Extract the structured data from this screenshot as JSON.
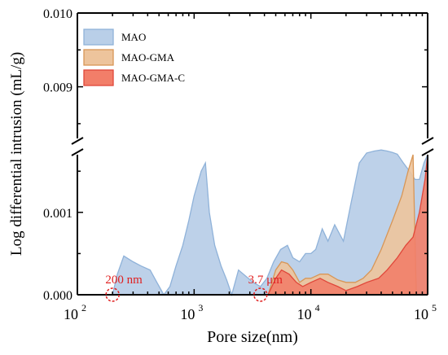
{
  "chart_data": {
    "type": "area",
    "xlabel": "Pore size(nm)",
    "ylabel": "Log differential intrusion (mL/g)",
    "x_scale": "log",
    "xlim": [
      100,
      100000
    ],
    "x_ticks": [
      {
        "value": 100,
        "base": "10",
        "exp": "2"
      },
      {
        "value": 1000,
        "base": "10",
        "exp": "3"
      },
      {
        "value": 10000,
        "base": "10",
        "exp": "4"
      },
      {
        "value": 100000,
        "base": "10",
        "exp": "5"
      }
    ],
    "y_axis_break": true,
    "y_lower_range": [
      0,
      0.0017
    ],
    "y_upper_range": [
      0.0083,
      0.01
    ],
    "y_ticks": [
      {
        "value": 0,
        "label": "0.000"
      },
      {
        "value": 0.001,
        "label": "0.001"
      },
      {
        "value": 0.009,
        "label": "0.009"
      },
      {
        "value": 0.01,
        "label": "0.010"
      }
    ],
    "legend": {
      "position": "top-left"
    },
    "series": [
      {
        "name": "MAO",
        "fill": "#b9cfe8",
        "stroke": "#8fb2d9",
        "points": [
          [
            200,
            0
          ],
          [
            220,
            0.00025
          ],
          [
            250,
            0.00047
          ],
          [
            300,
            0.0004
          ],
          [
            350,
            0.00035
          ],
          [
            420,
            0.0003
          ],
          [
            480,
            0.00015
          ],
          [
            550,
            0.0
          ],
          [
            620,
            0.0001
          ],
          [
            700,
            0.00035
          ],
          [
            800,
            0.0006
          ],
          [
            900,
            0.0009
          ],
          [
            1000,
            0.0012
          ],
          [
            1150,
            0.0015
          ],
          [
            1250,
            0.0016
          ],
          [
            1350,
            0.001
          ],
          [
            1500,
            0.0006
          ],
          [
            1700,
            0.00035
          ],
          [
            1900,
            0.00018
          ],
          [
            2100,
            0.0
          ],
          [
            2400,
            0.0003
          ],
          [
            2800,
            0.00022
          ],
          [
            3200,
            0.00015
          ],
          [
            3700,
            0.0001
          ],
          [
            4200,
            0.0002
          ],
          [
            4800,
            0.0004
          ],
          [
            5500,
            0.00055
          ],
          [
            6300,
            0.0006
          ],
          [
            7000,
            0.00045
          ],
          [
            8000,
            0.0004
          ],
          [
            9000,
            0.0005
          ],
          [
            10000,
            0.0005
          ],
          [
            11000,
            0.00055
          ],
          [
            12500,
            0.0008
          ],
          [
            14000,
            0.00065
          ],
          [
            16000,
            0.00085
          ],
          [
            19000,
            0.00065
          ],
          [
            22000,
            0.0011
          ],
          [
            26000,
            0.0016
          ],
          [
            30000,
            0.0024
          ],
          [
            35000,
            0.0032
          ],
          [
            40000,
            0.0036
          ],
          [
            45000,
            0.0032
          ],
          [
            50000,
            0.0026
          ],
          [
            55000,
            0.0019
          ],
          [
            62000,
            0.0016
          ],
          [
            70000,
            0.0015
          ],
          [
            78000,
            0.0014
          ],
          [
            85000,
            0.0014
          ],
          [
            93000,
            0.0016
          ],
          [
            100000,
            0.0017
          ]
        ]
      },
      {
        "name": "MAO-GMA",
        "fill": "#edc49c",
        "stroke": "#d89656",
        "points": [
          [
            4300,
            0
          ],
          [
            5000,
            0.0003
          ],
          [
            5600,
            0.0004
          ],
          [
            6300,
            0.00038
          ],
          [
            7000,
            0.0003
          ],
          [
            8000,
            0.00015
          ],
          [
            9000,
            0.0002
          ],
          [
            10000,
            0.0002
          ],
          [
            12000,
            0.00025
          ],
          [
            14000,
            0.00025
          ],
          [
            17000,
            0.00018
          ],
          [
            20000,
            0.00015
          ],
          [
            24000,
            0.00015
          ],
          [
            28000,
            0.0002
          ],
          [
            33000,
            0.0003
          ],
          [
            40000,
            0.00055
          ],
          [
            50000,
            0.0009
          ],
          [
            60000,
            0.0012
          ],
          [
            68000,
            0.0015
          ],
          [
            75000,
            0.0017
          ],
          [
            80000,
            0.0
          ]
        ]
      },
      {
        "name": "MAO-GMA-C",
        "fill": "#f27e69",
        "stroke": "#e0473a",
        "points": [
          [
            4300,
            0
          ],
          [
            5000,
            0.0002
          ],
          [
            5600,
            0.0003
          ],
          [
            6500,
            0.00025
          ],
          [
            7500,
            0.00015
          ],
          [
            8500,
            0.0001
          ],
          [
            10000,
            0.00015
          ],
          [
            12000,
            0.0002
          ],
          [
            14000,
            0.00015
          ],
          [
            17000,
            0.0001
          ],
          [
            20000,
            5e-05
          ],
          [
            25000,
            0.0001
          ],
          [
            30000,
            0.00015
          ],
          [
            38000,
            0.0002
          ],
          [
            45000,
            0.0003
          ],
          [
            55000,
            0.00045
          ],
          [
            65000,
            0.0006
          ],
          [
            75000,
            0.0007
          ],
          [
            85000,
            0.001
          ],
          [
            95000,
            0.0014
          ],
          [
            100000,
            0.0017
          ]
        ]
      }
    ],
    "annotations": [
      {
        "text": "200 nm",
        "x": 200,
        "y": 0,
        "color": "#e02020"
      },
      {
        "text": "3.7 μm",
        "x": 3700,
        "y": 0,
        "color": "#e02020"
      }
    ]
  }
}
